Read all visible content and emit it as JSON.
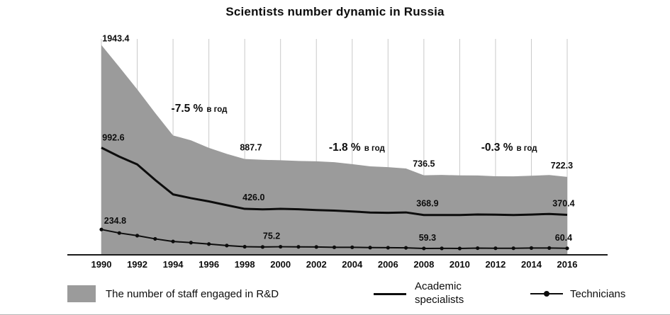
{
  "title": "Scientists number dynamic in Russia",
  "colors": {
    "area": "#9b9b9b",
    "line": "#0d0d0d",
    "grid": "#c9c9c9",
    "axis": "#1a1a1a",
    "text": "#0d0d0d"
  },
  "legend": {
    "area_label": "The number of staff engaged in R&D",
    "line_label": "Academic specialists",
    "dot_label": "Technicians"
  },
  "chart_data": {
    "type": "area",
    "title": "Scientists number dynamic in Russia",
    "x": [
      1990,
      1991,
      1992,
      1993,
      1994,
      1995,
      1996,
      1997,
      1998,
      1999,
      2000,
      2001,
      2002,
      2003,
      2004,
      2005,
      2006,
      2007,
      2008,
      2009,
      2010,
      2011,
      2012,
      2013,
      2014,
      2015,
      2016
    ],
    "x_ticks": [
      1990,
      1992,
      1994,
      1996,
      1998,
      2000,
      2002,
      2004,
      2006,
      2008,
      2010,
      2012,
      2014,
      2016
    ],
    "ylim": [
      0,
      2000
    ],
    "grid": true,
    "legend_position": "bottom",
    "series": [
      {
        "name": "The number of staff engaged in R&D",
        "type": "area",
        "values": [
          1943.4,
          1740,
          1533,
          1315,
          1106,
          1061,
          991,
          935,
          887.7,
          880,
          876,
          870,
          866,
          858,
          840,
          820,
          812,
          800,
          736.5,
          740,
          736,
          735,
          728,
          727,
          733,
          739,
          722.3
        ]
      },
      {
        "name": "Academic specialists",
        "type": "line",
        "values": [
          992.6,
          910,
          838,
          694,
          560,
          525,
          495,
          460,
          426.0,
          421,
          426,
          422,
          415,
          410,
          402,
          392,
          389,
          393,
          368.9,
          369,
          369,
          374,
          372,
          369,
          373,
          379,
          370.4
        ]
      },
      {
        "name": "Technicians",
        "type": "line_markers",
        "values": [
          234.8,
          202,
          178,
          148,
          124,
          113,
          100,
          86,
          75.2,
          73,
          75,
          74,
          73,
          70,
          70,
          67,
          66,
          65,
          59.3,
          60,
          59,
          62,
          61,
          61,
          63,
          63,
          60.4
        ]
      }
    ],
    "point_labels": [
      {
        "text": "1943.4",
        "year": 1990.05,
        "value": 1943.4,
        "dy": -5,
        "anchor": "start"
      },
      {
        "text": "992.6",
        "year": 1990.05,
        "value": 992.6,
        "dy": -10,
        "anchor": "start"
      },
      {
        "text": "234.8",
        "year": 1990.15,
        "value": 234.8,
        "dy": -8,
        "anchor": "start"
      },
      {
        "text": "887.7",
        "year": 1998.35,
        "value": 887.7,
        "dy": -12,
        "anchor": "middle"
      },
      {
        "text": "426.0",
        "year": 1998.5,
        "value": 426.0,
        "dy": -12,
        "anchor": "middle"
      },
      {
        "text": "75.2",
        "year": 1999.5,
        "value": 75.2,
        "dy": -11,
        "anchor": "middle"
      },
      {
        "text": "736.5",
        "year": 2008.0,
        "value": 736.5,
        "dy": -12,
        "anchor": "middle"
      },
      {
        "text": "368.9",
        "year": 2008.2,
        "value": 368.9,
        "dy": -12,
        "anchor": "middle"
      },
      {
        "text": "59.3",
        "year": 2008.2,
        "value": 59.3,
        "dy": -11,
        "anchor": "middle"
      },
      {
        "text": "722.3",
        "year": 2015.7,
        "value": 722.3,
        "dy": -12,
        "anchor": "middle"
      },
      {
        "text": "370.4",
        "year": 2015.8,
        "value": 370.4,
        "dy": -12,
        "anchor": "middle"
      },
      {
        "text": "60.4",
        "year": 2015.8,
        "value": 60.4,
        "dy": -11,
        "anchor": "middle"
      }
    ],
    "annotations": [
      {
        "main": "-7.5 %",
        "suffix": "в год",
        "year": 1993.9,
        "value": 1325
      },
      {
        "main": "-1.8 %",
        "suffix": "в год",
        "year": 2002.7,
        "value": 965
      },
      {
        "main": "-0.3 %",
        "suffix": "в год",
        "year": 2011.2,
        "value": 965
      }
    ]
  }
}
